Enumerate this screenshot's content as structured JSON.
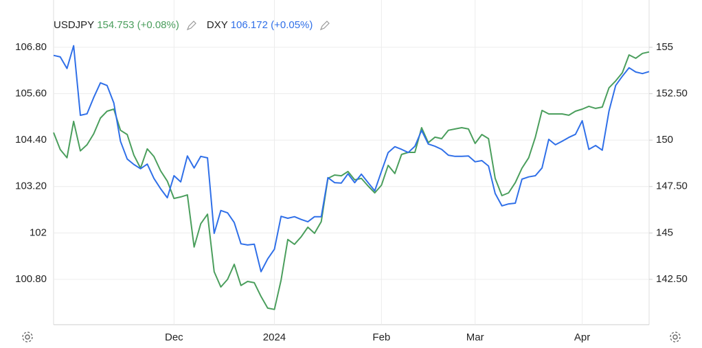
{
  "chart_data": {
    "type": "line",
    "categories": [
      null,
      null,
      null,
      null,
      null,
      null,
      null,
      null,
      null,
      null,
      null,
      null,
      null,
      null,
      null,
      null,
      null,
      null,
      "Dec",
      null,
      null,
      null,
      null,
      null,
      null,
      null,
      null,
      null,
      null,
      null,
      null,
      null,
      null,
      "2024",
      null,
      null,
      null,
      null,
      null,
      null,
      null,
      null,
      null,
      null,
      null,
      null,
      null,
      null,
      null,
      "Feb",
      null,
      null,
      null,
      null,
      null,
      null,
      null,
      null,
      null,
      null,
      null,
      null,
      null,
      "Mar",
      null,
      null,
      null,
      null,
      null,
      null,
      null,
      null,
      null,
      null,
      null,
      null,
      null,
      null,
      null,
      "Apr",
      null,
      null,
      null,
      null,
      null,
      null,
      null,
      null,
      null,
      null
    ],
    "series": [
      {
        "name": "USDJPY",
        "legend_label": "154.753 (+0.08%)",
        "color": "#4a9e5c",
        "axis": "y2",
        "values": [
          150.41,
          149.49,
          149.05,
          151.01,
          149.42,
          149.75,
          150.34,
          151.19,
          151.56,
          151.67,
          150.53,
          150.3,
          149.19,
          148.49,
          149.53,
          149.12,
          148.34,
          147.79,
          146.86,
          146.94,
          147.05,
          144.24,
          145.5,
          146.01,
          142.91,
          142.09,
          142.5,
          143.31,
          142.17,
          142.39,
          142.32,
          141.58,
          140.95,
          140.88,
          142.46,
          144.65,
          144.39,
          144.79,
          145.31,
          144.98,
          145.61,
          147.94,
          148.12,
          148.08,
          148.31,
          147.86,
          147.94,
          147.53,
          147.16,
          147.57,
          148.64,
          148.2,
          149.23,
          149.34,
          149.34,
          150.67,
          149.86,
          150.16,
          150.08,
          150.53,
          150.6,
          150.67,
          150.6,
          149.82,
          150.3,
          150.08,
          147.94,
          147.01,
          147.16,
          147.71,
          148.49,
          149.05,
          150.16,
          151.6,
          151.41,
          151.41,
          151.41,
          151.34,
          151.56,
          151.67,
          151.82,
          151.71,
          151.78,
          152.82,
          153.19,
          153.63,
          154.59,
          154.41,
          154.67,
          154.75
        ]
      },
      {
        "name": "DXY",
        "legend_label": "106.172 (+0.05%)",
        "color": "#2f6fe8",
        "axis": "y",
        "values": [
          106.59,
          106.55,
          106.25,
          106.84,
          105.04,
          105.08,
          105.5,
          105.88,
          105.81,
          105.36,
          104.37,
          103.91,
          103.77,
          103.66,
          103.78,
          103.41,
          103.14,
          102.91,
          103.48,
          103.32,
          103.99,
          103.68,
          103.98,
          103.94,
          101.99,
          102.58,
          102.52,
          102.27,
          101.72,
          101.69,
          101.71,
          101.0,
          101.33,
          101.58,
          102.43,
          102.38,
          102.42,
          102.35,
          102.29,
          102.42,
          102.42,
          103.43,
          103.3,
          103.29,
          103.53,
          103.3,
          103.52,
          103.3,
          103.09,
          103.59,
          104.08,
          104.23,
          104.16,
          104.08,
          104.24,
          104.65,
          104.3,
          104.24,
          104.16,
          104.01,
          103.98,
          103.98,
          103.99,
          103.84,
          103.87,
          103.73,
          103.02,
          102.7,
          102.75,
          102.77,
          103.39,
          103.45,
          103.48,
          103.68,
          104.42,
          104.28,
          104.37,
          104.47,
          104.55,
          104.9,
          104.16,
          104.26,
          104.14,
          105.15,
          105.81,
          106.05,
          106.27,
          106.16,
          106.12,
          106.17
        ]
      }
    ],
    "ylim": [
      99.63,
      107.95
    ],
    "yticks": [
      {
        "value": 100.8,
        "label": "100.80"
      },
      102,
      {
        "value": 103.2,
        "label": "103.20"
      },
      {
        "value": 104.4,
        "label": "104.40"
      },
      {
        "value": 105.6,
        "label": "105.60"
      },
      {
        "value": 106.8,
        "label": "106.80"
      }
    ],
    "y2lim": [
      140.06,
      157.4
    ],
    "y2ticks": [
      {
        "value": 142.5,
        "label": "142.50"
      },
      145,
      {
        "value": 147.5,
        "label": "147.50"
      },
      150,
      {
        "value": 152.5,
        "label": "152.50"
      },
      155
    ],
    "grid": true
  }
}
